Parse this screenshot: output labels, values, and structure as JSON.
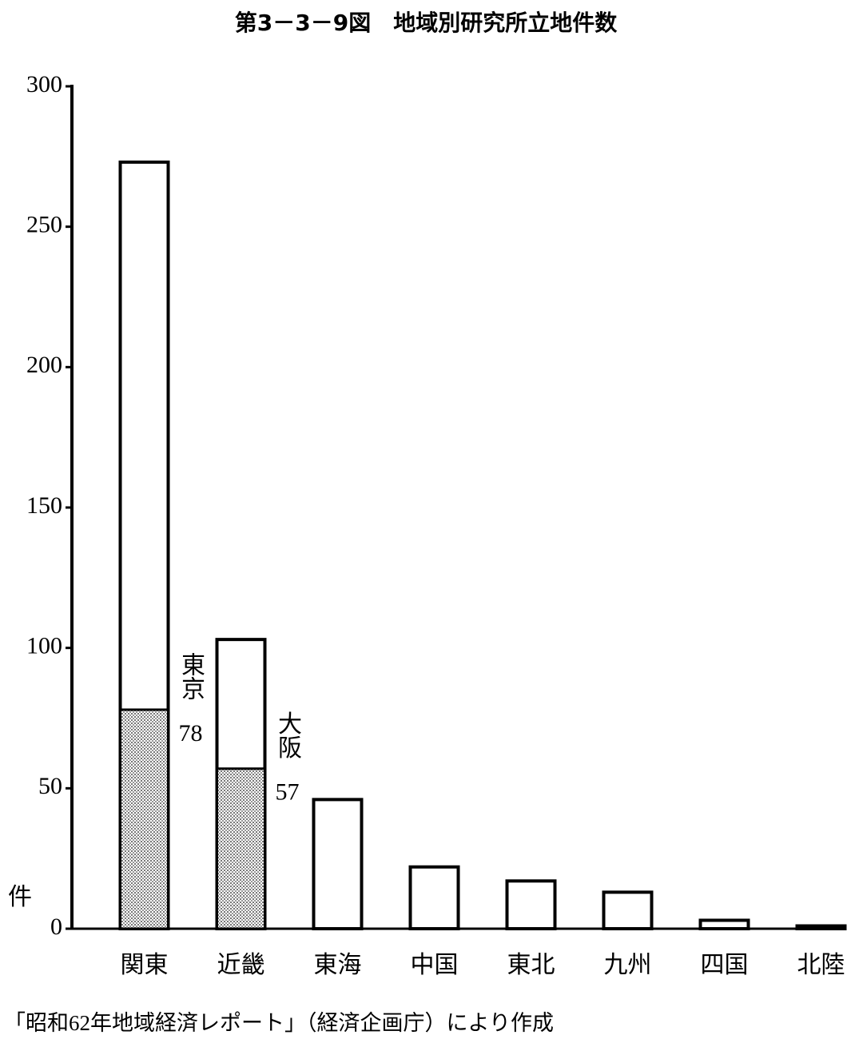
{
  "chart_data": {
    "type": "bar",
    "title": "第3－3－9図　地域別研究所立地件数",
    "y_label": "件",
    "categories": [
      "関東",
      "近畿",
      "東海",
      "中国",
      "東北",
      "九州",
      "四国",
      "北陸"
    ],
    "values": [
      273,
      103,
      46,
      22,
      17,
      13,
      3,
      1
    ],
    "color": "#ffffff",
    "sub_bars": [
      {
        "name": "東京",
        "value": 78,
        "category": "関東"
      },
      {
        "name": "大阪",
        "value": 57,
        "category": "近畿"
      }
    ],
    "sub_color": "#c8c8c8",
    "ylim": [
      0,
      300
    ],
    "yticks": [
      0,
      50,
      100,
      150,
      200,
      250,
      300
    ],
    "grid": false,
    "source": "「昭和62年地域経済レポート」（経済企画庁）により作成"
  }
}
